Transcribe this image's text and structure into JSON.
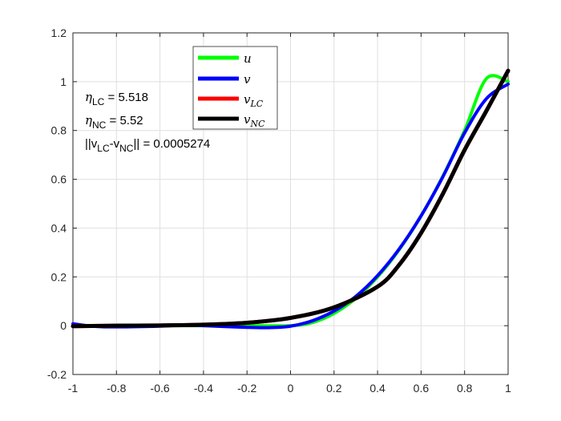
{
  "chart_data": {
    "type": "line",
    "title": "",
    "xlabel": "",
    "ylabel": "",
    "xlim": [
      -1,
      1
    ],
    "ylim": [
      -0.2,
      1.2
    ],
    "xticks": [
      "-1",
      "-0.8",
      "-0.6",
      "-0.4",
      "-0.2",
      "0",
      "0.2",
      "0.4",
      "0.6",
      "0.8",
      "1"
    ],
    "yticks": [
      "-0.2",
      "0",
      "0.2",
      "0.4",
      "0.6",
      "0.8",
      "1",
      "1.2"
    ],
    "grid": true,
    "legend_position": "top-center",
    "series": [
      {
        "name": "u",
        "color": "#00ff00",
        "x": [
          -1,
          -0.8,
          -0.6,
          -0.4,
          -0.2,
          0,
          0.1,
          0.2,
          0.3,
          0.4,
          0.5,
          0.6,
          0.7,
          0.8,
          0.9,
          1
        ],
        "y": [
          0,
          0,
          0,
          0,
          0,
          0,
          0.0125,
          0.05,
          0.1125,
          0.2,
          0.3125,
          0.45,
          0.6125,
          0.8,
          1.0125,
          1.0
        ]
      },
      {
        "name": "v",
        "color": "#0000ff",
        "x": [
          -1,
          -0.9,
          -0.8,
          -0.6,
          -0.5,
          -0.4,
          -0.2,
          -0.1,
          0,
          0.1,
          0.2,
          0.3,
          0.4,
          0.5,
          0.6,
          0.7,
          0.8,
          0.9,
          1
        ],
        "y": [
          0.008,
          -0.003,
          -0.005,
          -0.002,
          0.002,
          0.0,
          -0.007,
          -0.008,
          -0.002,
          0.02,
          0.06,
          0.12,
          0.205,
          0.315,
          0.45,
          0.61,
          0.79,
          0.93,
          0.99
        ]
      },
      {
        "name": "v_LC",
        "color": "#ff0000",
        "x": [
          -1,
          -0.8,
          -0.6,
          -0.4,
          -0.2,
          0,
          0.2,
          0.4,
          0.5,
          0.6,
          0.7,
          0.8,
          0.9,
          1
        ],
        "y": [
          -0.002,
          0.0,
          0.001,
          0.004,
          0.012,
          0.032,
          0.075,
          0.16,
          0.25,
          0.38,
          0.54,
          0.72,
          0.88,
          1.045
        ]
      },
      {
        "name": "v_NC",
        "color": "#000000",
        "x": [
          -1,
          -0.8,
          -0.6,
          -0.4,
          -0.2,
          0,
          0.2,
          0.4,
          0.5,
          0.6,
          0.7,
          0.8,
          0.9,
          1
        ],
        "y": [
          -0.002,
          0.0,
          0.001,
          0.004,
          0.012,
          0.032,
          0.075,
          0.16,
          0.25,
          0.38,
          0.54,
          0.72,
          0.88,
          1.045
        ]
      }
    ],
    "annotations": {
      "eta_lc_symbol": "η",
      "eta_lc_sub": "LC",
      "eta_lc_value": " = 5.518",
      "eta_nc_symbol": "η",
      "eta_nc_sub": "NC",
      "eta_nc_value": " = 5.52",
      "norm_open": "||v",
      "norm_sub1": "LC",
      "norm_mid": "-v",
      "norm_sub2": "NC",
      "norm_value": "|| = 0.0005274"
    },
    "legend": {
      "u_main": "u",
      "v_main": "v",
      "vlc_main": "v",
      "vlc_sub": "LC",
      "vnc_main": "v",
      "vnc_sub": "NC"
    }
  }
}
